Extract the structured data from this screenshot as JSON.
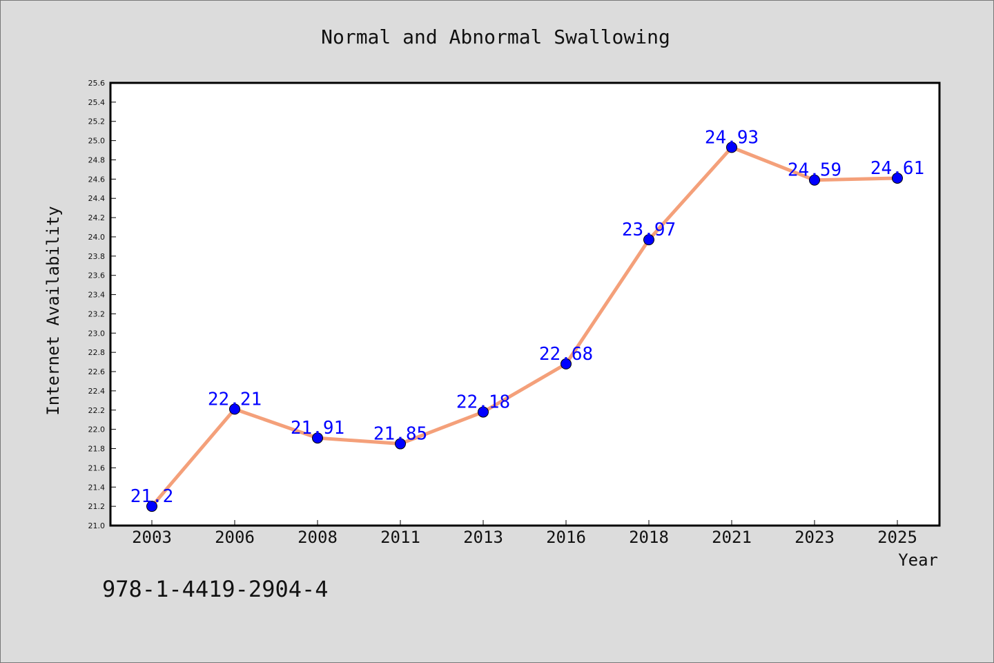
{
  "colors": {
    "background": "#dcdcdc",
    "plot_background": "#ffffff",
    "line": "#f4a07a",
    "marker": "#0000ff",
    "data_label": "#0000ff"
  },
  "footer": {
    "isbn": "978-1-4419-2904-4"
  },
  "chart_data": {
    "type": "line",
    "title": "Normal and Abnormal Swallowing",
    "xlabel": "Year",
    "ylabel": "Internet Availability",
    "categories": [
      "2003",
      "2006",
      "2008",
      "2011",
      "2013",
      "2016",
      "2018",
      "2021",
      "2023",
      "2025"
    ],
    "series": [
      {
        "values": [
          21.2,
          22.21,
          21.91,
          21.85,
          22.18,
          22.68,
          23.97,
          24.93,
          24.59,
          24.61
        ],
        "labels": [
          "21.2",
          "22.21",
          "21.91",
          "21.85",
          "22.18",
          "22.68",
          "23.97",
          "24.93",
          "24.59",
          "24.61"
        ]
      }
    ],
    "ylim": [
      21.0,
      25.6
    ],
    "yticks": [
      "21.0",
      "21.2",
      "21.4",
      "21.6",
      "21.8",
      "22.0",
      "22.2",
      "22.4",
      "22.6",
      "22.8",
      "23.0",
      "23.2",
      "23.4",
      "23.6",
      "23.8",
      "24.0",
      "24.2",
      "24.4",
      "24.6",
      "24.8",
      "25.0",
      "25.2",
      "25.4",
      "25.6"
    ],
    "grid": false,
    "legend": "none",
    "marker": "circle"
  }
}
